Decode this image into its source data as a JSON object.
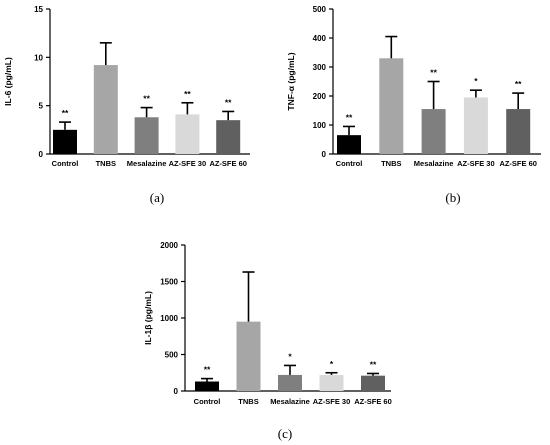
{
  "chart_data": [
    {
      "type": "bar",
      "panel_label": "(a)",
      "ylabel": "IL-6 (pg/mL)",
      "ylim": [
        0,
        15
      ],
      "yticks": [
        0,
        5,
        10,
        15
      ],
      "categories": [
        "Control",
        "TNBS",
        "Mesalazine",
        "AZ-SFE 30",
        "AZ-SFE 60"
      ],
      "values": [
        2.5,
        9.2,
        3.8,
        4.1,
        3.5
      ],
      "errors": [
        0.8,
        2.3,
        1.0,
        1.2,
        0.9
      ],
      "significance": [
        "**",
        "",
        "**",
        "**",
        "**"
      ],
      "bar_colors": [
        "#000000",
        "#a6a6a6",
        "#7f7f7f",
        "#d9d9d9",
        "#606060"
      ],
      "grid": false
    },
    {
      "type": "bar",
      "panel_label": "(b)",
      "ylabel": "TNF-α (pg/mL)",
      "ylim": [
        0,
        500
      ],
      "yticks": [
        0,
        100,
        200,
        300,
        400,
        500
      ],
      "categories": [
        "Control",
        "TNBS",
        "Mesalazine",
        "AZ-SFE 30",
        "AZ-SFE 60"
      ],
      "values": [
        65,
        330,
        155,
        195,
        155
      ],
      "errors": [
        30,
        75,
        95,
        25,
        55
      ],
      "significance": [
        "**",
        "",
        "**",
        "*",
        "**"
      ],
      "bar_colors": [
        "#000000",
        "#a6a6a6",
        "#7f7f7f",
        "#d9d9d9",
        "#606060"
      ],
      "grid": false
    },
    {
      "type": "bar",
      "panel_label": "(c)",
      "ylabel": "IL-1β (pg/mL)",
      "ylim": [
        0,
        2000
      ],
      "yticks": [
        0,
        500,
        1000,
        1500,
        2000
      ],
      "categories": [
        "Control",
        "TNBS",
        "Mesalazine",
        "AZ-SFE 30",
        "AZ-SFE 60"
      ],
      "values": [
        130,
        950,
        220,
        220,
        210
      ],
      "errors": [
        40,
        680,
        130,
        30,
        30
      ],
      "significance": [
        "**",
        "",
        "*",
        "*",
        "**"
      ],
      "bar_colors": [
        "#000000",
        "#a6a6a6",
        "#7f7f7f",
        "#d9d9d9",
        "#606060"
      ],
      "grid": false
    }
  ]
}
